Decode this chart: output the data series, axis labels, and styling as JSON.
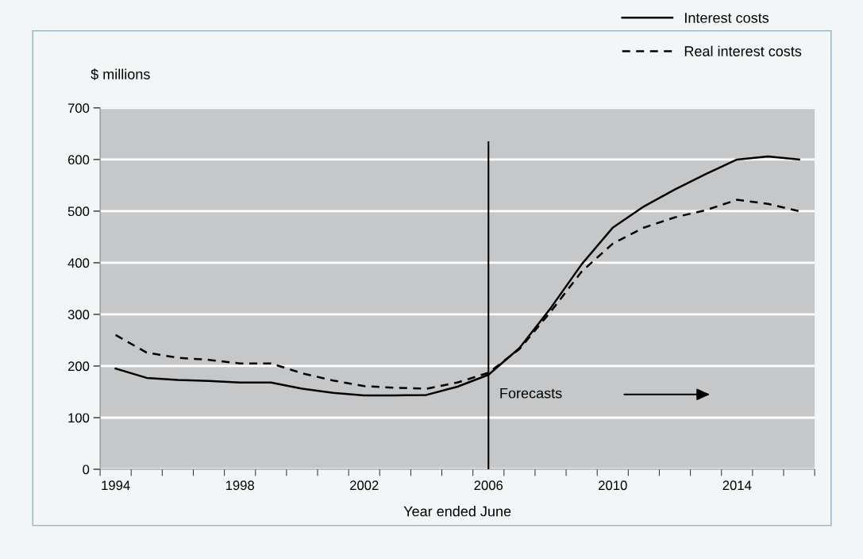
{
  "chart_data": {
    "type": "line",
    "ylabel": "$ millions",
    "xlabel": "Year ended June",
    "categories": [
      "1994",
      null,
      null,
      null,
      "1998",
      null,
      null,
      null,
      "2002",
      null,
      null,
      null,
      "2006",
      null,
      null,
      null,
      "2010",
      null,
      null,
      null,
      "2014",
      null,
      null
    ],
    "series": [
      {
        "name": "Interest costs",
        "color": "#000000",
        "line_style": "solid",
        "values": [
          195,
          177,
          173,
          171,
          168,
          168,
          156,
          148,
          143,
          143,
          144,
          160,
          183,
          235,
          312,
          397,
          468,
          509,
          542,
          572,
          600,
          606,
          600
        ]
      },
      {
        "name": "Real interest costs",
        "color": "#000000",
        "line_style": "dashed",
        "values": [
          260,
          226,
          216,
          212,
          205,
          205,
          186,
          172,
          161,
          158,
          156,
          168,
          187,
          233,
          305,
          383,
          437,
          468,
          488,
          502,
          522,
          514,
          500
        ]
      }
    ],
    "ylim": [
      0,
      700
    ],
    "yticks": [
      0,
      100,
      200,
      300,
      400,
      500,
      600,
      700
    ],
    "ref_lines": [
      {
        "axis": "x",
        "value": "2006",
        "color": "#000000"
      }
    ],
    "annotations": [
      {
        "text": "Forecasts",
        "x": "2006",
        "y": 145
      }
    ],
    "grid": "y",
    "legend": "top right",
    "marker": "none"
  }
}
